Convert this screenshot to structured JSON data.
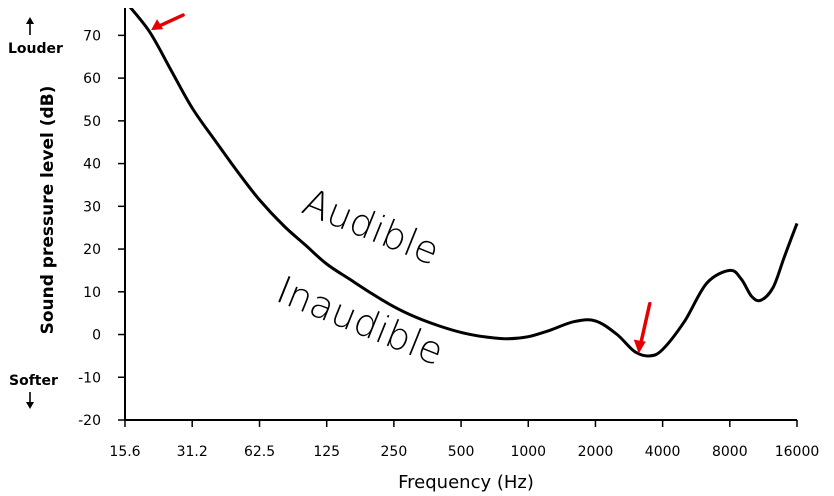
{
  "chart_data": {
    "type": "line",
    "xlabel": "Frequency (Hz)",
    "ylabel": "Sound pressure level (dB)",
    "x_scale": "log2",
    "xlim": [
      15.6,
      16000
    ],
    "ylim": [
      -20,
      75
    ],
    "x_ticks": [
      15.6,
      31.2,
      62.5,
      125,
      250,
      500,
      1000,
      2000,
      4000,
      8000,
      16000
    ],
    "x_tick_labels": [
      "15.6",
      "31.2",
      "62.5",
      "125",
      "250",
      "500",
      "1000",
      "2000",
      "4000",
      "8000",
      "16000"
    ],
    "y_ticks": [
      -20,
      -10,
      0,
      10,
      20,
      30,
      40,
      50,
      60,
      70
    ],
    "y_tick_labels": [
      "-20",
      "-10",
      "0",
      "10",
      "20",
      "30",
      "40",
      "50",
      "60",
      "70"
    ],
    "series": [
      {
        "color": "#000000",
        "x": [
          15.6,
          20,
          25,
          31.2,
          40,
          50,
          62.5,
          80,
          100,
          125,
          160,
          200,
          250,
          315,
          400,
          500,
          630,
          800,
          1000,
          1250,
          1600,
          2000,
          2500,
          3000,
          3500,
          4000,
          5000,
          6300,
          8000,
          9000,
          10000,
          11000,
          12500,
          14000,
          16000
        ],
        "y": [
          78,
          71,
          62,
          53,
          45,
          38,
          31.5,
          25.5,
          21,
          16.5,
          12.8,
          9.5,
          6.5,
          4,
          2,
          0.5,
          -0.5,
          -1,
          -0.5,
          1,
          3,
          3.2,
          0,
          -4,
          -5,
          -3.5,
          3,
          12,
          15,
          13,
          9,
          8,
          11,
          18,
          26
        ]
      }
    ],
    "annotations": {
      "side_top": {
        "text": "Louder",
        "arrow": "up"
      },
      "side_bottom": {
        "text": "Softer",
        "arrow": "down"
      },
      "region_above": "Audible",
      "region_below": "Inaudible",
      "arrow_color": "#e60000",
      "arrows": [
        {
          "x": 20,
          "y": 71
        },
        {
          "x": 3000,
          "y": -4
        }
      ]
    },
    "grid": false,
    "legend": "none"
  }
}
